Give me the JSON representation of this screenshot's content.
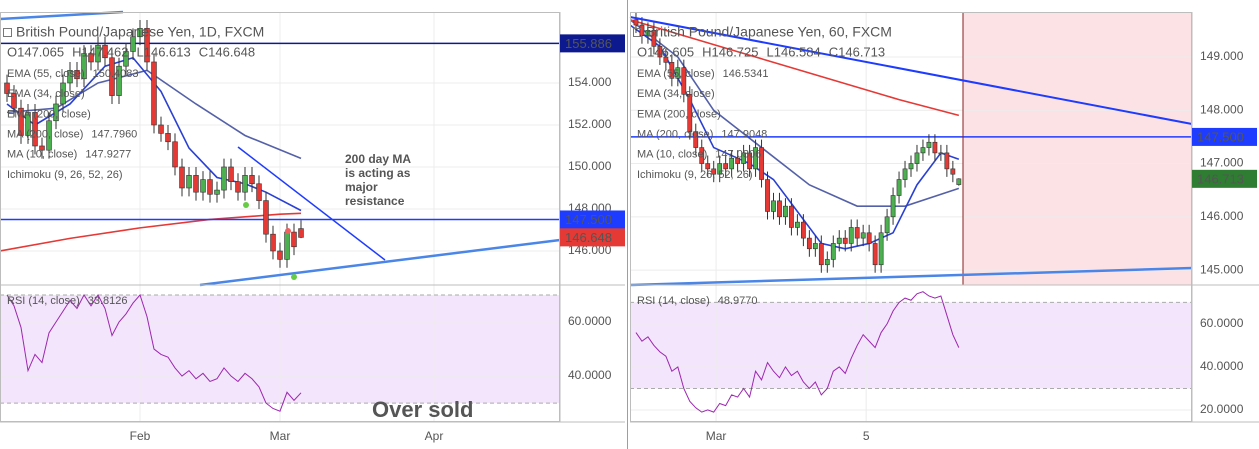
{
  "chart_data": [
    {
      "type": "candlestick",
      "title": "British Pound/Japanese Yen, 1D, FXCM",
      "legend_ohlc": [
        "O147.065",
        "H147.462",
        "L146.613",
        "C146.648"
      ],
      "x": [
        1,
        2,
        3,
        4,
        5,
        6,
        7,
        8,
        9,
        10,
        11,
        12,
        13,
        14,
        15,
        16,
        17,
        18,
        19,
        20,
        21,
        22,
        23,
        24,
        25,
        26,
        27,
        28,
        29,
        30,
        31,
        32,
        33,
        34,
        35,
        36,
        37,
        38,
        39,
        40,
        41,
        42,
        43
      ],
      "open": [
        154.0,
        153.5,
        152.8,
        151.5,
        152.6,
        151.0,
        150.8,
        152.2,
        153.0,
        154.0,
        154.6,
        154.2,
        155.4,
        155.0,
        155.8,
        155.2,
        153.4,
        154.8,
        155.5,
        156.2,
        156.6,
        155.0,
        152.0,
        151.6,
        151.2,
        150.0,
        149.0,
        149.6,
        148.8,
        149.4,
        148.7,
        148.9,
        150.0,
        149.3,
        148.8,
        149.6,
        149.2,
        148.4,
        146.8,
        146.0,
        145.6,
        146.9,
        147.065
      ],
      "high": [
        154.4,
        153.9,
        153.2,
        153.0,
        153.0,
        151.4,
        152.6,
        153.4,
        154.4,
        155.0,
        155.0,
        155.8,
        155.8,
        156.2,
        156.2,
        155.6,
        155.2,
        155.9,
        156.6,
        157.0,
        157.0,
        155.4,
        152.4,
        152.0,
        151.6,
        150.4,
        150.0,
        150.0,
        149.8,
        149.8,
        149.3,
        150.4,
        150.4,
        149.7,
        150.0,
        150.0,
        149.6,
        148.8,
        147.2,
        146.4,
        147.3,
        147.3,
        147.462
      ],
      "low": [
        153.1,
        152.4,
        151.1,
        151.1,
        150.6,
        150.4,
        150.4,
        151.8,
        152.6,
        153.6,
        153.8,
        153.8,
        154.6,
        154.6,
        154.8,
        153.0,
        153.0,
        154.4,
        155.1,
        155.8,
        154.6,
        151.6,
        151.2,
        150.8,
        149.6,
        148.6,
        148.6,
        148.4,
        148.4,
        148.3,
        148.3,
        148.5,
        148.9,
        148.4,
        148.4,
        148.8,
        148.0,
        146.4,
        145.6,
        145.2,
        145.2,
        145.8,
        146.613
      ],
      "close": [
        153.5,
        152.8,
        151.5,
        152.6,
        151.0,
        150.8,
        152.2,
        153.0,
        154.0,
        154.6,
        154.2,
        155.4,
        155.0,
        155.8,
        155.2,
        153.4,
        154.8,
        155.5,
        156.2,
        156.6,
        155.0,
        152.0,
        151.6,
        151.2,
        150.0,
        149.0,
        149.6,
        148.8,
        149.4,
        148.7,
        148.9,
        150.0,
        149.3,
        148.8,
        149.6,
        149.2,
        148.4,
        146.8,
        146.0,
        145.6,
        146.9,
        146.2,
        146.648
      ],
      "up_color": "#4caf50",
      "down_color": "#e53935",
      "xlim": [
        0,
        80
      ],
      "xticks": [
        {
          "value": 20,
          "label": "Feb"
        },
        {
          "value": 40,
          "label": "Mar"
        },
        {
          "value": 62,
          "label": "Apr"
        }
      ],
      "ylim": [
        144.38,
        157.38
      ],
      "yticks": [
        {
          "value": 146,
          "label": "146.000"
        },
        {
          "value": 148,
          "label": "148.000"
        },
        {
          "value": 150,
          "label": "150.000"
        },
        {
          "value": 152,
          "label": "152.000"
        },
        {
          "value": 154,
          "label": "154.000"
        }
      ],
      "grid": true,
      "indicators": [
        {
          "name": "EMA (55, close)",
          "value_label": "150.4083",
          "color": "#5461a8",
          "x": [
            1,
            8,
            14,
            21,
            28,
            35,
            43
          ],
          "values": [
            152.6,
            152.8,
            154.0,
            154.6,
            153.0,
            151.5,
            150.4083
          ]
        },
        {
          "name": "EMA (34, close)"
        },
        {
          "name": "EMA (200, close)"
        },
        {
          "name": "MA (200, close)",
          "value_label": "147.7960",
          "color": "#e53935",
          "x": [
            0,
            10,
            20,
            30,
            40,
            43
          ],
          "values": [
            146.0,
            146.6,
            147.1,
            147.5,
            147.75,
            147.796
          ]
        },
        {
          "name": "MA (10, close)",
          "value_label": "147.9277",
          "color": "#2940d3",
          "x": [
            1,
            5,
            10,
            15,
            19,
            23,
            27,
            31,
            35,
            38,
            43
          ],
          "values": [
            153.0,
            152.0,
            153.0,
            154.8,
            155.2,
            153.6,
            150.9,
            149.5,
            149.2,
            148.8,
            147.9277
          ]
        },
        {
          "name": "Ichimoku (9, 26, 52, 26)"
        }
      ],
      "hlines": [
        {
          "value": 155.886,
          "label": "155.886",
          "color": "#0d1a8f"
        },
        {
          "value": 147.5,
          "label": "147.500",
          "color": "#1e3cff"
        }
      ],
      "last_price": {
        "value": 146.648,
        "label": "146.648",
        "color": "#e53935"
      },
      "rsi": {
        "name": "RSI (14, close)",
        "value_label": "33.8126",
        "color": "#9c27b0",
        "values": [
          70,
          66,
          58,
          42,
          48,
          45,
          56,
          60,
          64,
          68,
          65,
          70,
          66,
          70,
          65,
          55,
          60,
          63,
          67,
          70,
          62,
          50,
          48,
          47,
          43,
          40,
          42,
          39,
          41,
          38,
          39,
          43,
          40,
          38,
          41,
          39,
          36,
          30,
          28,
          27,
          34,
          31,
          33.8126
        ],
        "ylim": [
          23,
          73.7
        ],
        "yticks": [
          {
            "value": 40,
            "label": "40.0000"
          },
          {
            "value": 60,
            "label": "60.0000"
          }
        ],
        "bands": [
          30,
          70
        ]
      },
      "annotations": [
        {
          "lines": [
            "200 day MA",
            "is acting as",
            "major",
            "resistance"
          ]
        },
        {
          "lines": [
            "Over sold"
          ]
        }
      ]
    },
    {
      "type": "candlestick",
      "title": "British Pound/Japanese Yen, 60, FXCM",
      "legend_ohlc": [
        "O146.605",
        "H146.725",
        "L146.584",
        "C146.713"
      ],
      "x": [
        1,
        2,
        3,
        4,
        5,
        6,
        7,
        8,
        9,
        10,
        11,
        12,
        13,
        14,
        15,
        16,
        17,
        18,
        19,
        20,
        21,
        22,
        23,
        24,
        25,
        26,
        27,
        28,
        29,
        30,
        31,
        32,
        33,
        34,
        35,
        36,
        37,
        38,
        39,
        40,
        41,
        42,
        43,
        44,
        45,
        46,
        47,
        48,
        49,
        50,
        51,
        52,
        53,
        54,
        55
      ],
      "open": [
        149.7,
        149.6,
        149.4,
        149.5,
        149.2,
        149.0,
        148.9,
        148.6,
        148.8,
        148.3,
        147.6,
        147.3,
        147.0,
        146.9,
        146.8,
        147.0,
        146.9,
        147.1,
        147.0,
        147.2,
        146.9,
        147.3,
        146.7,
        146.1,
        146.3,
        146.0,
        146.2,
        145.8,
        145.9,
        145.6,
        145.4,
        145.5,
        145.1,
        145.2,
        145.5,
        145.6,
        145.5,
        145.8,
        145.6,
        145.7,
        145.5,
        145.1,
        145.7,
        146.0,
        146.4,
        146.7,
        146.9,
        147.0,
        147.2,
        147.3,
        147.4,
        147.2,
        147.2,
        146.9,
        146.605
      ],
      "high": [
        149.85,
        149.75,
        149.65,
        149.65,
        149.35,
        149.15,
        149.05,
        148.95,
        148.95,
        148.45,
        147.75,
        147.45,
        147.15,
        147.05,
        147.15,
        147.15,
        147.25,
        147.25,
        147.35,
        147.35,
        147.45,
        147.45,
        146.85,
        146.45,
        146.45,
        146.35,
        146.35,
        146.05,
        146.05,
        145.75,
        145.65,
        145.65,
        145.35,
        145.65,
        145.75,
        145.75,
        145.95,
        145.95,
        145.85,
        145.85,
        145.65,
        145.85,
        146.15,
        146.55,
        146.85,
        147.05,
        147.15,
        147.35,
        147.45,
        147.55,
        147.55,
        147.35,
        147.35,
        147.05,
        146.725
      ],
      "low": [
        149.45,
        149.25,
        149.25,
        149.05,
        148.85,
        148.75,
        148.45,
        148.45,
        148.15,
        147.45,
        147.15,
        146.85,
        146.75,
        146.65,
        146.65,
        146.75,
        146.75,
        146.85,
        146.85,
        146.75,
        146.75,
        146.55,
        145.95,
        145.95,
        145.85,
        145.85,
        145.65,
        145.65,
        145.45,
        145.25,
        145.25,
        144.95,
        144.95,
        145.05,
        145.35,
        145.35,
        145.35,
        145.45,
        145.45,
        145.35,
        144.95,
        144.95,
        145.55,
        145.85,
        146.25,
        146.55,
        146.75,
        146.85,
        147.05,
        147.15,
        147.05,
        147.05,
        146.75,
        146.65,
        146.584
      ],
      "close": [
        149.6,
        149.4,
        149.5,
        149.2,
        149.0,
        148.9,
        148.6,
        148.8,
        148.3,
        147.6,
        147.3,
        147.0,
        146.9,
        146.8,
        147.0,
        146.9,
        147.1,
        147.0,
        147.2,
        146.9,
        147.3,
        146.7,
        146.1,
        146.3,
        146.0,
        146.2,
        145.8,
        145.9,
        145.6,
        145.4,
        145.5,
        145.1,
        145.2,
        145.5,
        145.6,
        145.5,
        145.8,
        145.6,
        145.7,
        145.5,
        145.1,
        145.7,
        146.0,
        146.4,
        146.7,
        146.9,
        147.0,
        147.2,
        147.3,
        147.4,
        147.2,
        147.2,
        146.9,
        146.8,
        146.713
      ],
      "up_color": "#4caf50",
      "down_color": "#e53935",
      "xlim": [
        0,
        94
      ],
      "xticks": [
        {
          "value": 14.4,
          "label": "Mar"
        },
        {
          "value": 39.5,
          "label": "5"
        }
      ],
      "ylim": [
        144.72,
        149.845
      ],
      "yticks": [
        {
          "value": 145,
          "label": "145.000"
        },
        {
          "value": 146,
          "label": "146.000"
        },
        {
          "value": 147,
          "label": "147.000"
        },
        {
          "value": 148,
          "label": "148.000"
        },
        {
          "value": 149,
          "label": "149.000"
        }
      ],
      "grid": true,
      "indicators": [
        {
          "name": "EMA (55, close)",
          "value_label": "146.5341",
          "color": "#5461a8",
          "x": [
            0,
            8,
            14,
            22,
            30,
            38,
            46,
            55
          ],
          "values": [
            149.7,
            149.0,
            148.0,
            147.3,
            146.6,
            146.2,
            146.2,
            146.5341
          ]
        },
        {
          "name": "EMA (34, close)"
        },
        {
          "name": "EMA (200, close)"
        },
        {
          "name": "MA (200, close)",
          "value_label": "147.9048",
          "color": "#e53935",
          "x": [
            0,
            15,
            30,
            45,
            55
          ],
          "values": [
            149.7,
            149.2,
            148.7,
            148.2,
            147.9048
          ]
        },
        {
          "name": "MA (10, close)",
          "value_label": "147.0806",
          "color": "#2940d3",
          "x": [
            0,
            5,
            10,
            14,
            20,
            24,
            28,
            32,
            36,
            40,
            44,
            48,
            52,
            55
          ],
          "values": [
            149.6,
            149.2,
            148.2,
            147.3,
            147.0,
            146.7,
            146.1,
            145.5,
            145.4,
            145.5,
            145.7,
            146.6,
            147.2,
            147.0806
          ]
        },
        {
          "name": "Ichimoku (9, 26, 52, 26)"
        }
      ],
      "hlines": [
        {
          "value": 147.5,
          "label": "147.500",
          "color": "#1e3cff"
        }
      ],
      "last_price": {
        "value": 146.713,
        "label": "146.713",
        "color": "#2e7d32"
      },
      "rsi": {
        "name": "RSI (14, close)",
        "value_label": "48.9770",
        "color": "#9c27b0",
        "values": [
          56,
          52,
          54,
          50,
          47,
          45,
          38,
          40,
          30,
          24,
          21,
          19,
          20,
          19,
          23,
          22,
          27,
          26,
          30,
          26,
          38,
          34,
          42,
          38,
          35,
          40,
          36,
          38,
          33,
          30,
          33,
          27,
          30,
          38,
          40,
          37,
          44,
          50,
          55,
          52,
          49,
          56,
          60,
          66,
          70,
          72,
          71,
          74,
          75,
          73,
          72,
          73,
          64,
          55,
          48.977
        ],
        "ylim": [
          14.4,
          78.1
        ],
        "yticks": [
          {
            "value": 20,
            "label": "20.0000"
          },
          {
            "value": 40,
            "label": "40.0000"
          },
          {
            "value": 60,
            "label": "60.0000"
          }
        ],
        "bands": [
          30,
          70
        ]
      },
      "annotations": []
    }
  ]
}
